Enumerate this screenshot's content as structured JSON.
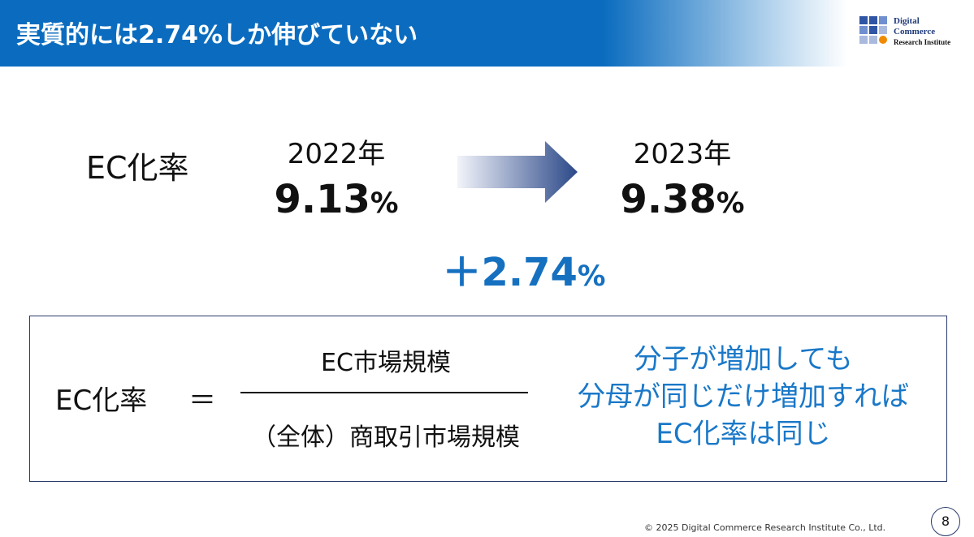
{
  "header": {
    "title": "実質的には2.74%しか伸びていない",
    "logo": [
      "Digital",
      "Commerce",
      "Research Institute"
    ]
  },
  "comparison": {
    "label": "EC化率",
    "from": {
      "year": "2022年",
      "value": "9.13",
      "unit": "%"
    },
    "to": {
      "year": "2023年",
      "value": "9.38",
      "unit": "%"
    },
    "change": {
      "value": "＋2.74",
      "unit": "%"
    }
  },
  "formula": {
    "lhs": "EC化率",
    "equals": "＝",
    "numerator": "EC市場規模",
    "denominator": "（全体）商取引市場規模",
    "note": [
      "分子が増加しても",
      "分母が同じだけ増加すれば",
      "EC化率は同じ"
    ]
  },
  "footer": {
    "copyright": "© 2025 Digital Commerce Research Institute Co., Ltd.",
    "page": "8"
  }
}
